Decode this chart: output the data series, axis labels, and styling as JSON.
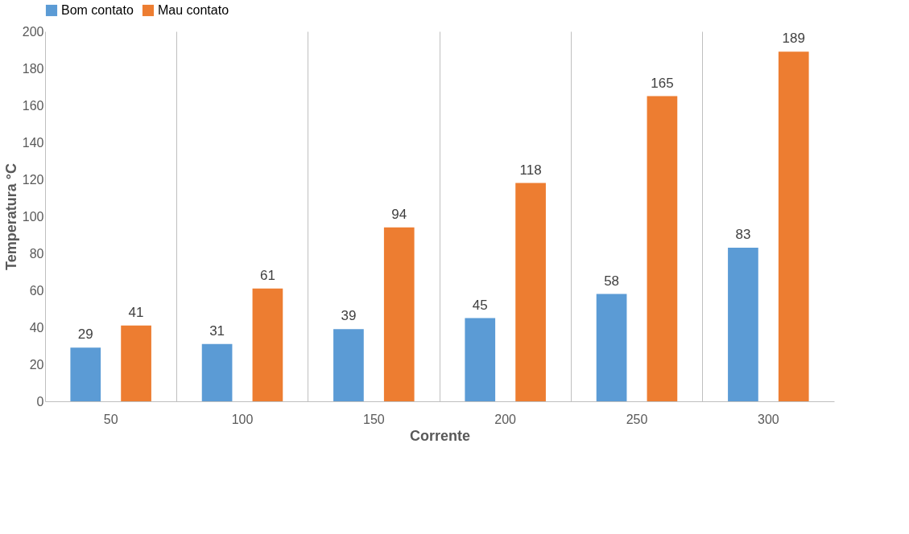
{
  "chart_data": {
    "type": "bar",
    "xlabel": "Corrente",
    "ylabel": "Temperatura °C",
    "categories": [
      "50",
      "100",
      "150",
      "200",
      "250",
      "300"
    ],
    "series": [
      {
        "name": "Bom contato",
        "color": "#5b9bd5",
        "values": [
          29,
          31,
          39,
          45,
          58,
          83
        ]
      },
      {
        "name": "Mau contato",
        "color": "#ed7d31",
        "values": [
          41,
          61,
          94,
          118,
          165,
          189
        ]
      }
    ],
    "ylim": [
      0,
      200
    ],
    "yticks": [
      0,
      20,
      40,
      60,
      80,
      100,
      120,
      140,
      160,
      180,
      200
    ],
    "grid": "x",
    "legend": "top",
    "data_labels": true
  }
}
